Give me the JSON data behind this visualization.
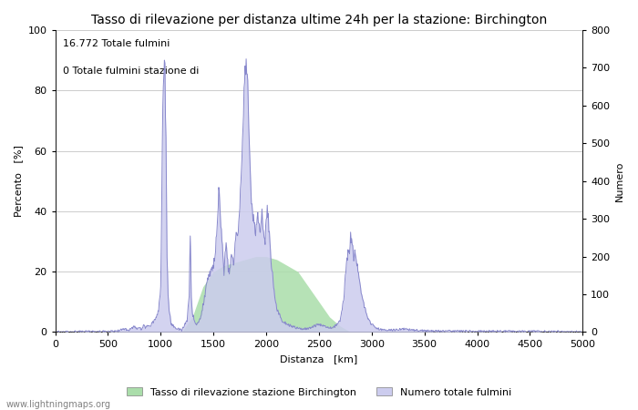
{
  "title": "Tasso di rilevazione per distanza ultime 24h per la stazione: Birchington",
  "xlabel": "Distanza   [km]",
  "ylabel_left": "Percento   [%]",
  "ylabel_right": "Numero",
  "annotation_line1": "16.772 Totale fulmini",
  "annotation_line2": "0 Totale fulmini stazione di",
  "legend_green": "Tasso di rilevazione stazione Birchington",
  "legend_blue": "Numero totale fulmini",
  "watermark": "www.lightningmaps.org",
  "xlim": [
    0,
    5000
  ],
  "ylim_left": [
    0,
    100
  ],
  "ylim_right": [
    0,
    800
  ],
  "xticks": [
    0,
    500,
    1000,
    1500,
    2000,
    2500,
    3000,
    3500,
    4000,
    4500,
    5000
  ],
  "yticks_left": [
    0,
    20,
    40,
    60,
    80,
    100
  ],
  "yticks_right": [
    0,
    100,
    200,
    300,
    400,
    500,
    600,
    700,
    800
  ],
  "background_color": "#ffffff",
  "grid_color": "#cccccc",
  "line_color": "#8888cc",
  "fill_blue_color": "#ccccee",
  "fill_green_color": "#aaddaa",
  "title_fontsize": 10,
  "label_fontsize": 8,
  "tick_fontsize": 8,
  "legend_fontsize": 8
}
